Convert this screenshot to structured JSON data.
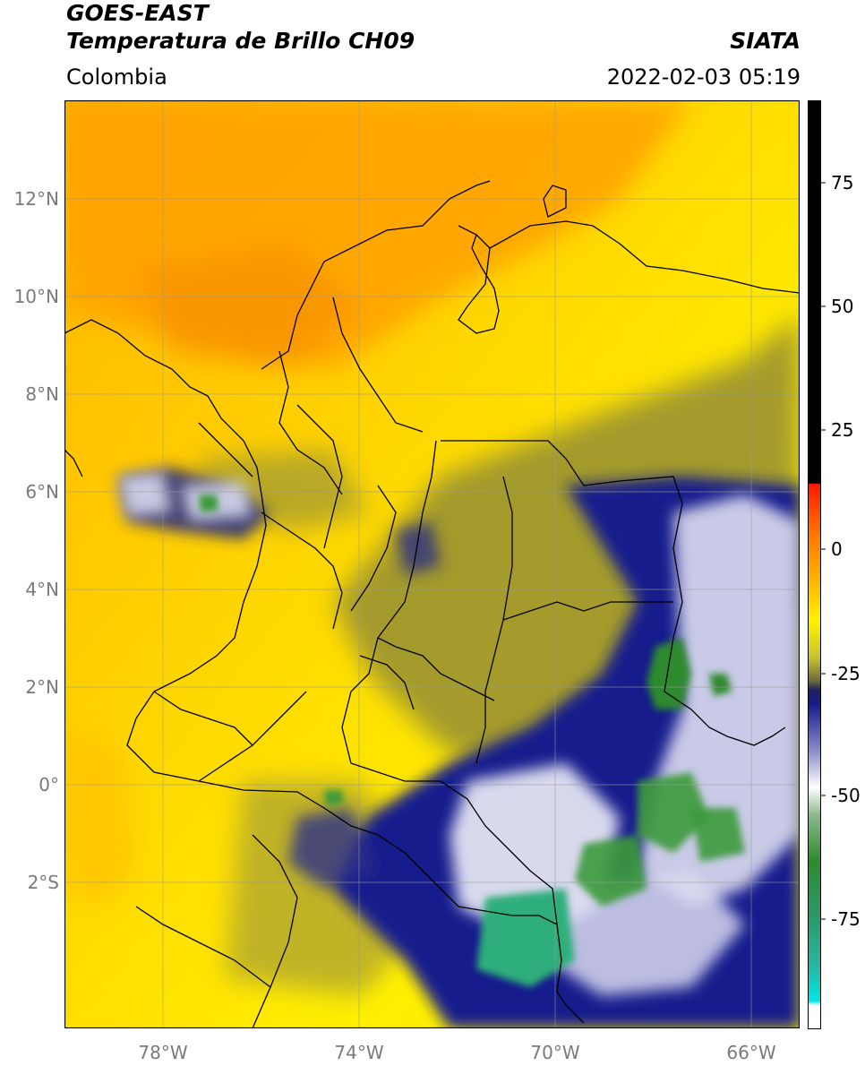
{
  "header": {
    "satellite": "GOES-EAST",
    "product": "Temperatura de Brillo CH09",
    "region": "Colombia",
    "agency": "SIATA",
    "timestamp": "2022-02-03 05:19"
  },
  "map": {
    "lon_range": [
      -80,
      -65
    ],
    "lat_range": [
      -5,
      14
    ],
    "lon_ticks": [
      {
        "value": -78,
        "label": "78°W"
      },
      {
        "value": -74,
        "label": "74°W"
      },
      {
        "value": -70,
        "label": "70°W"
      },
      {
        "value": -66,
        "label": "66°W"
      }
    ],
    "lat_ticks": [
      {
        "value": 12,
        "label": "12°N"
      },
      {
        "value": 10,
        "label": "10°N"
      },
      {
        "value": 8,
        "label": "8°N"
      },
      {
        "value": 6,
        "label": "6°N"
      },
      {
        "value": 4,
        "label": "4°N"
      },
      {
        "value": 2,
        "label": "2°N"
      },
      {
        "value": 0,
        "label": "0°"
      },
      {
        "value": -2,
        "label": "2°S"
      }
    ]
  },
  "colorbar": {
    "range": [
      -95,
      90
    ],
    "ticks": [
      {
        "value": 75,
        "label": "75"
      },
      {
        "value": 50,
        "label": "50"
      },
      {
        "value": 25,
        "label": "25"
      },
      {
        "value": 0,
        "label": "0"
      },
      {
        "value": -25,
        "label": "-25"
      },
      {
        "value": -50,
        "label": "-50"
      },
      {
        "value": -75,
        "label": "-75"
      }
    ],
    "colors": {
      "black": "#000000",
      "red": "#ff1a00",
      "orange": "#ffa000",
      "yellow": "#fff200",
      "olive": "#8f8a2a",
      "navy": "#141c8a",
      "white": "#ffffff",
      "green": "#2e8a2e",
      "teal": "#2ab58a",
      "cyan": "#00e5e5"
    }
  }
}
